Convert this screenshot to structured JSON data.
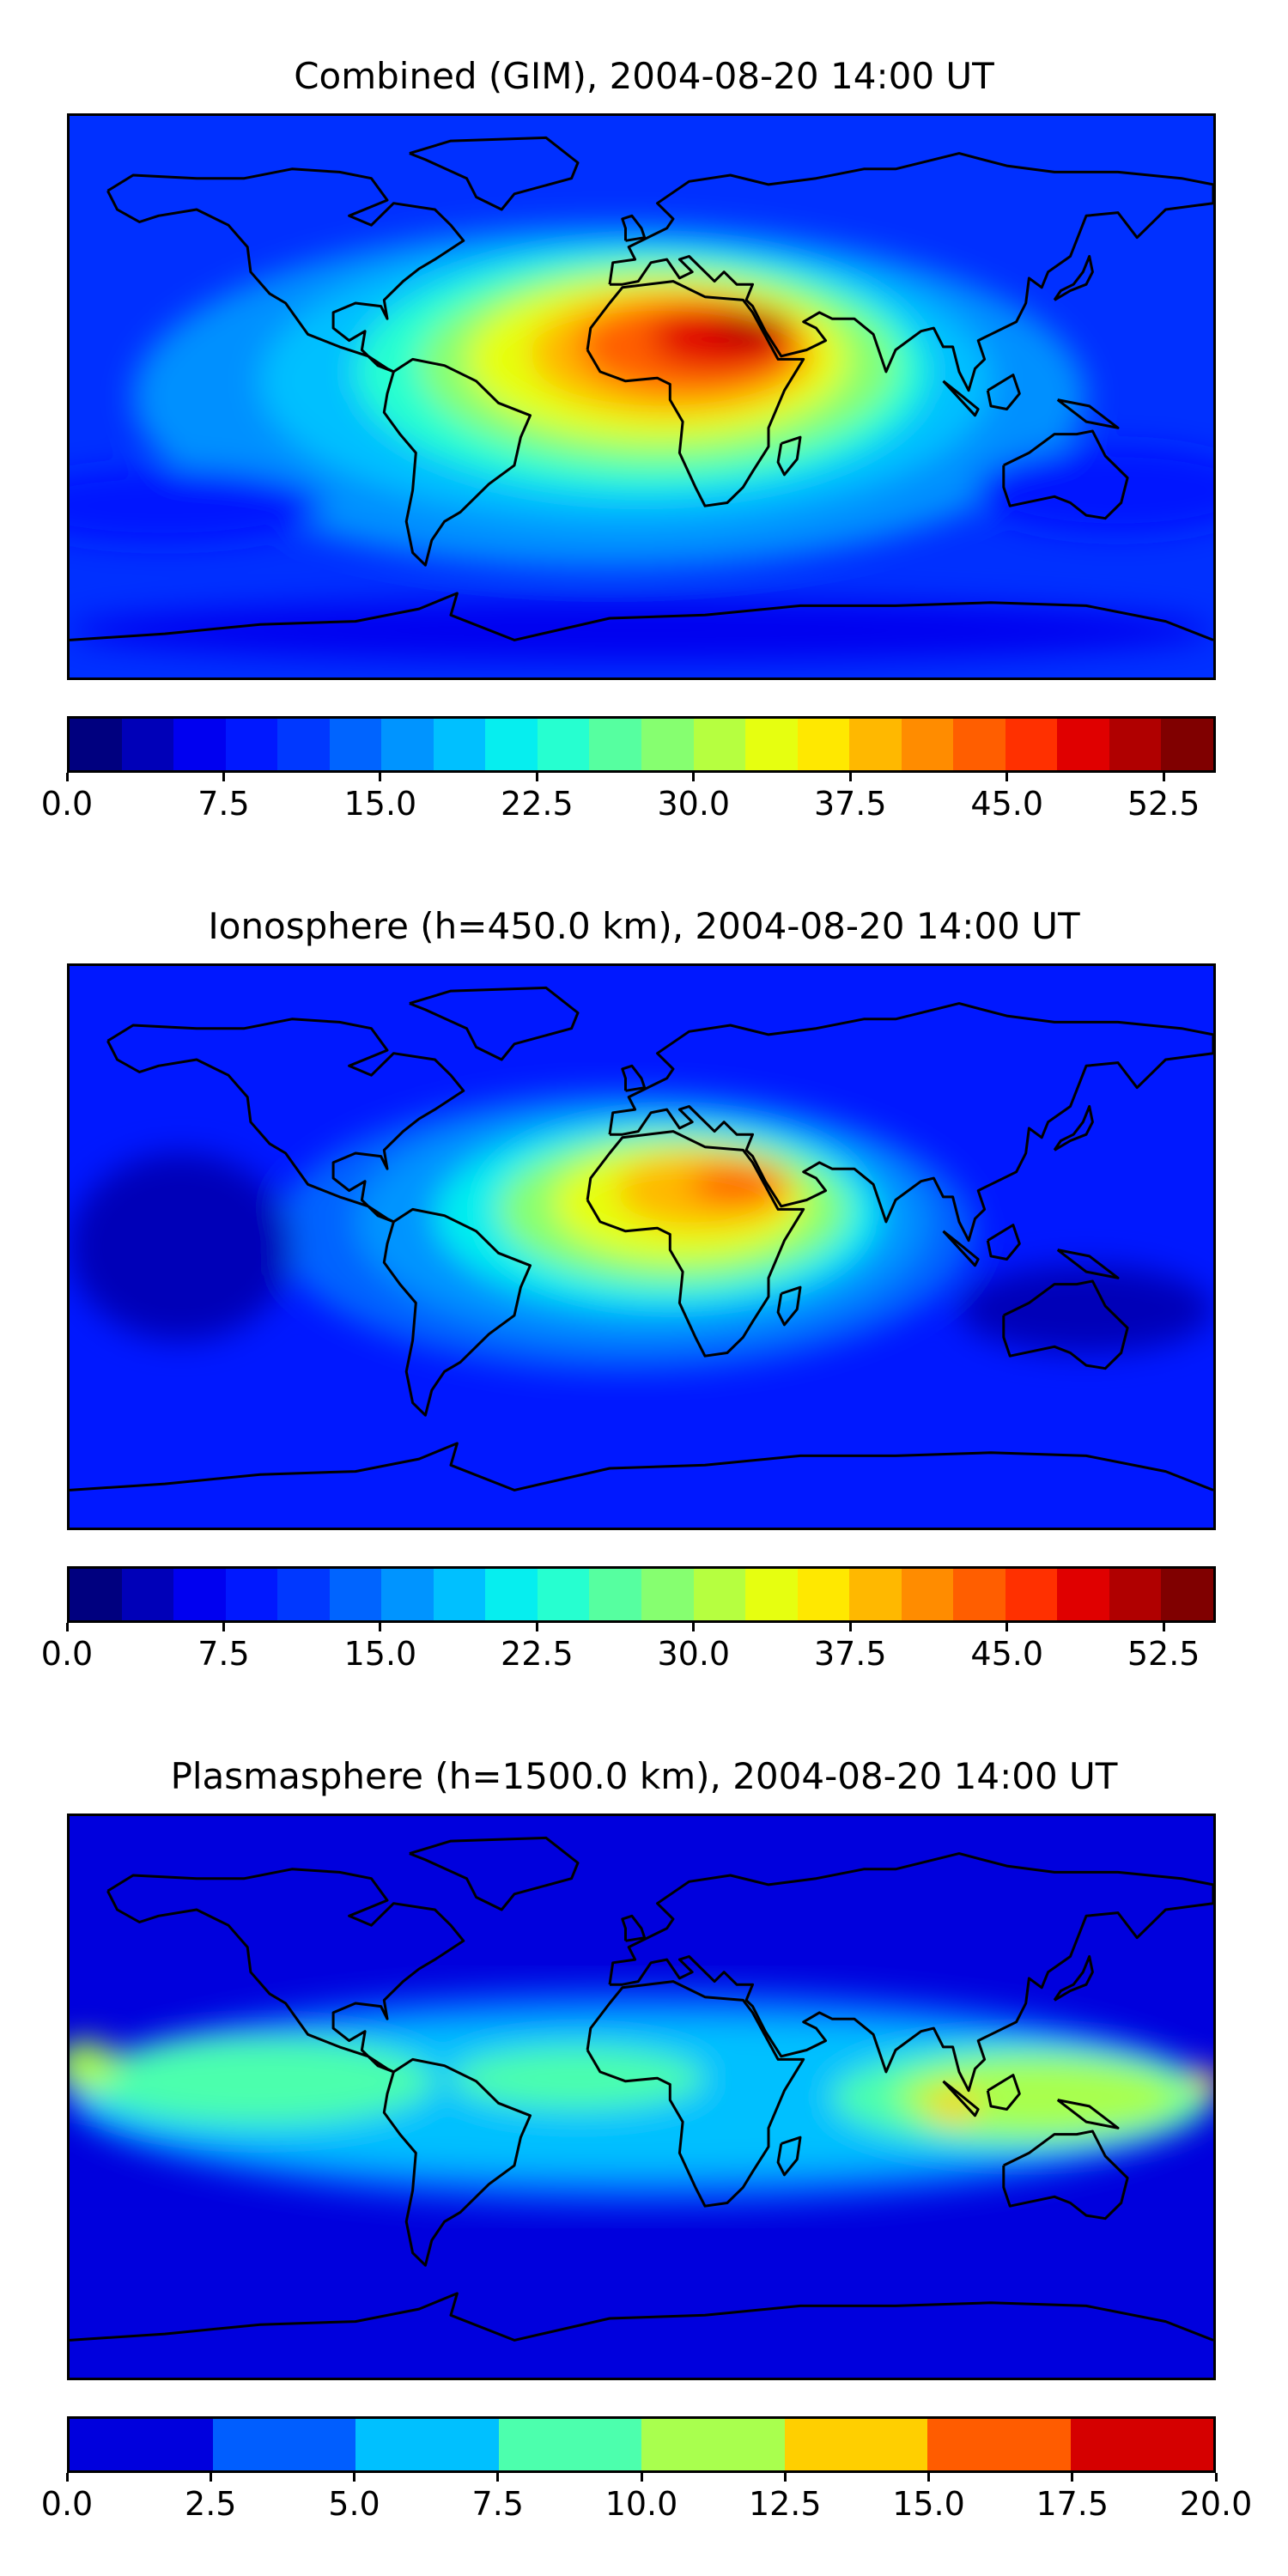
{
  "figure": {
    "panels": [
      {
        "id": "combined",
        "title": "Combined (GIM), 2004-08-20 14:00 UT",
        "colorbar": {
          "ticks": [
            "0.0",
            "7.5",
            "15.0",
            "22.5",
            "30.0",
            "37.5",
            "45.0",
            "52.5"
          ],
          "colors": [
            "#00007f",
            "#0000b8",
            "#0000f0",
            "#0018ff",
            "#0038ff",
            "#0064ff",
            "#0094ff",
            "#00c0ff",
            "#06eeef",
            "#26ffd0",
            "#56ffa0",
            "#86ff70",
            "#b6ff40",
            "#e6ff10",
            "#ffe800",
            "#ffb800",
            "#ff8c00",
            "#ff5e00",
            "#ff3000",
            "#e00000",
            "#b00000",
            "#800000"
          ]
        }
      },
      {
        "id": "ionosphere",
        "title": "Ionosphere  (h=450.0 km), 2004-08-20 14:00 UT",
        "colorbar": {
          "ticks": [
            "0.0",
            "7.5",
            "15.0",
            "22.5",
            "30.0",
            "37.5",
            "45.0",
            "52.5"
          ],
          "colors": [
            "#00007f",
            "#0000b8",
            "#0000f0",
            "#0018ff",
            "#0038ff",
            "#0064ff",
            "#0094ff",
            "#00c0ff",
            "#06eeef",
            "#26ffd0",
            "#56ffa0",
            "#86ff70",
            "#b6ff40",
            "#e6ff10",
            "#ffe800",
            "#ffb800",
            "#ff8c00",
            "#ff5e00",
            "#ff3000",
            "#e00000",
            "#b00000",
            "#800000"
          ]
        }
      },
      {
        "id": "plasmasphere",
        "title": "Plasmasphere (h=1500.0 km), 2004-08-20 14:00 UT",
        "colorbar": {
          "ticks": [
            "0.0",
            "2.5",
            "5.0",
            "7.5",
            "10.0",
            "12.5",
            "15.0",
            "17.5",
            "20.0"
          ],
          "colors": [
            "#0000dd",
            "#005eff",
            "#00c0ff",
            "#4cffad",
            "#a9ff4e",
            "#ffcf00",
            "#ff5c00",
            "#d50000"
          ]
        }
      }
    ]
  }
}
